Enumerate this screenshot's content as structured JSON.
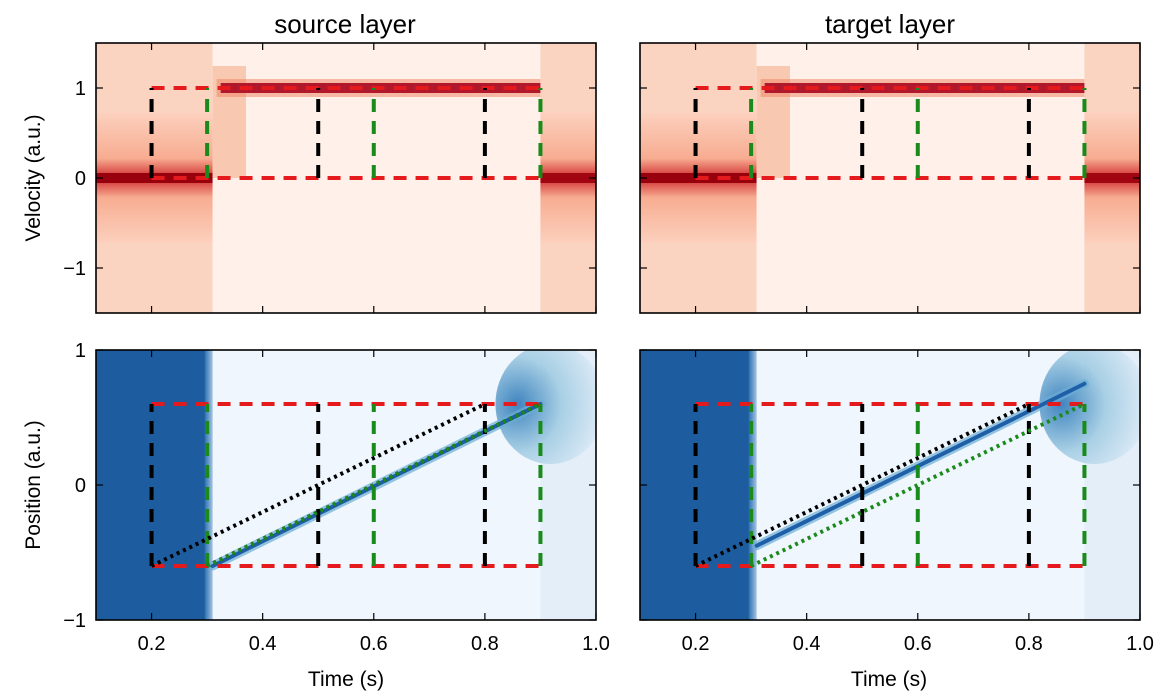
{
  "chart_data": [
    {
      "id": "source_velocity",
      "type": "heatmap",
      "title": "source layer",
      "xlabel": "",
      "ylabel": "Velocity (a.u.)",
      "xlim": [
        0.1,
        1.0
      ],
      "ylim": [
        -1.5,
        1.5
      ],
      "yticks": [
        -1,
        0,
        1
      ],
      "ytick_labels": [
        "−1",
        "0",
        "1"
      ],
      "colormap": "Reds",
      "description_values": {
        "stim_on": 0.31,
        "stim_off": 0.9,
        "target_velocity": 1.0
      },
      "overlays": [
        {
          "color": "#e41a1c",
          "style": "dashed",
          "points": [
            [
              0.2,
              1.0
            ],
            [
              0.9,
              1.0
            ]
          ]
        },
        {
          "color": "#e41a1c",
          "style": "dashed",
          "points": [
            [
              0.2,
              0.0
            ],
            [
              0.9,
              0.0
            ]
          ]
        },
        {
          "color": "#e41a1c",
          "style": "dashed",
          "points": [
            [
              0.2,
              0.0
            ],
            [
              0.2,
              1.0
            ]
          ]
        },
        {
          "color": "#000000",
          "style": "dashed",
          "points": [
            [
              0.2,
              0.0
            ],
            [
              0.2,
              1.0
            ]
          ]
        },
        {
          "color": "#000000",
          "style": "dashed",
          "points": [
            [
              0.5,
              0.0
            ],
            [
              0.5,
              1.0
            ]
          ]
        },
        {
          "color": "#000000",
          "style": "dashed",
          "points": [
            [
              0.8,
              0.0
            ],
            [
              0.8,
              1.0
            ]
          ]
        },
        {
          "color": "#1a8a1a",
          "style": "dashed",
          "points": [
            [
              0.3,
              0.0
            ],
            [
              0.3,
              1.0
            ]
          ]
        },
        {
          "color": "#1a8a1a",
          "style": "dashed",
          "points": [
            [
              0.6,
              0.0
            ],
            [
              0.6,
              1.0
            ]
          ]
        },
        {
          "color": "#1a8a1a",
          "style": "dashed",
          "points": [
            [
              0.9,
              0.0
            ],
            [
              0.9,
              1.0
            ]
          ]
        }
      ]
    },
    {
      "id": "target_velocity",
      "type": "heatmap",
      "title": "target layer",
      "xlabel": "",
      "ylabel": "",
      "xlim": [
        0.1,
        1.0
      ],
      "ylim": [
        -1.5,
        1.5
      ],
      "yticks": [
        -1,
        0,
        1
      ],
      "colormap": "Reds",
      "description_values": {
        "stim_on": 0.31,
        "stim_off": 0.9,
        "target_velocity": 1.0
      },
      "overlays": [
        {
          "color": "#e41a1c",
          "style": "dashed",
          "points": [
            [
              0.2,
              1.0
            ],
            [
              0.9,
              1.0
            ]
          ]
        },
        {
          "color": "#e41a1c",
          "style": "dashed",
          "points": [
            [
              0.2,
              0.0
            ],
            [
              0.9,
              0.0
            ]
          ]
        },
        {
          "color": "#e41a1c",
          "style": "dashed",
          "points": [
            [
              0.2,
              0.0
            ],
            [
              0.2,
              1.0
            ]
          ]
        },
        {
          "color": "#000000",
          "style": "dashed",
          "points": [
            [
              0.2,
              0.0
            ],
            [
              0.2,
              1.0
            ]
          ]
        },
        {
          "color": "#000000",
          "style": "dashed",
          "points": [
            [
              0.5,
              0.0
            ],
            [
              0.5,
              1.0
            ]
          ]
        },
        {
          "color": "#000000",
          "style": "dashed",
          "points": [
            [
              0.8,
              0.0
            ],
            [
              0.8,
              1.0
            ]
          ]
        },
        {
          "color": "#1a8a1a",
          "style": "dashed",
          "points": [
            [
              0.3,
              0.0
            ],
            [
              0.3,
              1.0
            ]
          ]
        },
        {
          "color": "#1a8a1a",
          "style": "dashed",
          "points": [
            [
              0.6,
              0.0
            ],
            [
              0.6,
              1.0
            ]
          ]
        },
        {
          "color": "#1a8a1a",
          "style": "dashed",
          "points": [
            [
              0.9,
              0.0
            ],
            [
              0.9,
              1.0
            ]
          ]
        }
      ]
    },
    {
      "id": "source_position",
      "type": "heatmap",
      "title": "",
      "xlabel": "Time (s)",
      "ylabel": "Position (a.u.)",
      "xlim": [
        0.1,
        1.0
      ],
      "ylim": [
        -1.0,
        1.0
      ],
      "xticks": [
        0.2,
        0.4,
        0.6,
        0.8,
        1.0
      ],
      "xtick_labels": [
        "0.2",
        "0.4",
        "0.6",
        "0.8",
        "1.0"
      ],
      "yticks": [
        -1,
        0,
        1
      ],
      "ytick_labels": [
        "−1",
        "0",
        "1"
      ],
      "colormap": "Blues",
      "trajectory": [
        [
          0.31,
          -0.6
        ],
        [
          0.9,
          0.6
        ]
      ],
      "overlays": [
        {
          "color": "#e41a1c",
          "style": "dashed",
          "points": [
            [
              0.2,
              0.6
            ],
            [
              0.9,
              0.6
            ]
          ]
        },
        {
          "color": "#e41a1c",
          "style": "dashed",
          "points": [
            [
              0.2,
              -0.6
            ],
            [
              0.9,
              -0.6
            ]
          ]
        },
        {
          "color": "#000000",
          "style": "dashed",
          "points": [
            [
              0.2,
              -0.6
            ],
            [
              0.2,
              0.6
            ]
          ]
        },
        {
          "color": "#000000",
          "style": "dashed",
          "points": [
            [
              0.5,
              -0.6
            ],
            [
              0.5,
              0.6
            ]
          ]
        },
        {
          "color": "#000000",
          "style": "dashed",
          "points": [
            [
              0.8,
              -0.6
            ],
            [
              0.8,
              0.6
            ]
          ]
        },
        {
          "color": "#1a8a1a",
          "style": "dashed",
          "points": [
            [
              0.3,
              -0.6
            ],
            [
              0.3,
              0.6
            ]
          ]
        },
        {
          "color": "#1a8a1a",
          "style": "dashed",
          "points": [
            [
              0.6,
              -0.6
            ],
            [
              0.6,
              0.6
            ]
          ]
        },
        {
          "color": "#1a8a1a",
          "style": "dashed",
          "points": [
            [
              0.9,
              -0.6
            ],
            [
              0.9,
              0.6
            ]
          ]
        },
        {
          "color": "#000000",
          "style": "dotted",
          "points": [
            [
              0.2,
              -0.6
            ],
            [
              0.8,
              0.6
            ]
          ]
        },
        {
          "color": "#000000",
          "style": "dotted",
          "points": [
            [
              0.3,
              -0.6
            ],
            [
              0.9,
              0.6
            ]
          ]
        },
        {
          "color": "#1a8a1a",
          "style": "dotted",
          "points": [
            [
              0.3,
              -0.6
            ],
            [
              0.9,
              0.6
            ]
          ]
        }
      ]
    },
    {
      "id": "target_position",
      "type": "heatmap",
      "title": "",
      "xlabel": "Time (s)",
      "ylabel": "",
      "xlim": [
        0.1,
        1.0
      ],
      "ylim": [
        -1.0,
        1.0
      ],
      "xticks": [
        0.2,
        0.4,
        0.6,
        0.8,
        1.0
      ],
      "xtick_labels": [
        "0.2",
        "0.4",
        "0.6",
        "0.8",
        "1.0"
      ],
      "yticks": [
        -1,
        0,
        1
      ],
      "colormap": "Blues",
      "trajectory": [
        [
          0.31,
          -0.45
        ],
        [
          0.9,
          0.75
        ]
      ],
      "overlays": [
        {
          "color": "#e41a1c",
          "style": "dashed",
          "points": [
            [
              0.2,
              0.6
            ],
            [
              0.9,
              0.6
            ]
          ]
        },
        {
          "color": "#e41a1c",
          "style": "dashed",
          "points": [
            [
              0.2,
              -0.6
            ],
            [
              0.9,
              -0.6
            ]
          ]
        },
        {
          "color": "#000000",
          "style": "dashed",
          "points": [
            [
              0.2,
              -0.6
            ],
            [
              0.2,
              0.6
            ]
          ]
        },
        {
          "color": "#000000",
          "style": "dashed",
          "points": [
            [
              0.5,
              -0.6
            ],
            [
              0.5,
              0.6
            ]
          ]
        },
        {
          "color": "#000000",
          "style": "dashed",
          "points": [
            [
              0.8,
              -0.6
            ],
            [
              0.8,
              0.6
            ]
          ]
        },
        {
          "color": "#1a8a1a",
          "style": "dashed",
          "points": [
            [
              0.3,
              -0.6
            ],
            [
              0.3,
              0.6
            ]
          ]
        },
        {
          "color": "#1a8a1a",
          "style": "dashed",
          "points": [
            [
              0.6,
              -0.6
            ],
            [
              0.6,
              0.6
            ]
          ]
        },
        {
          "color": "#1a8a1a",
          "style": "dashed",
          "points": [
            [
              0.9,
              -0.6
            ],
            [
              0.9,
              0.6
            ]
          ]
        },
        {
          "color": "#000000",
          "style": "dotted",
          "points": [
            [
              0.2,
              -0.6
            ],
            [
              0.8,
              0.6
            ]
          ]
        },
        {
          "color": "#1a8a1a",
          "style": "dotted",
          "points": [
            [
              0.3,
              -0.6
            ],
            [
              0.9,
              0.6
            ]
          ]
        }
      ]
    }
  ],
  "colors": {
    "red_dash": "#e41a1c",
    "black_dash": "#000000",
    "green_dash": "#1a8a1a",
    "reds_dark": "#67000d",
    "reds_light": "#fff5f0",
    "blues_dark": "#08306b",
    "blues_light": "#f7fbff"
  }
}
